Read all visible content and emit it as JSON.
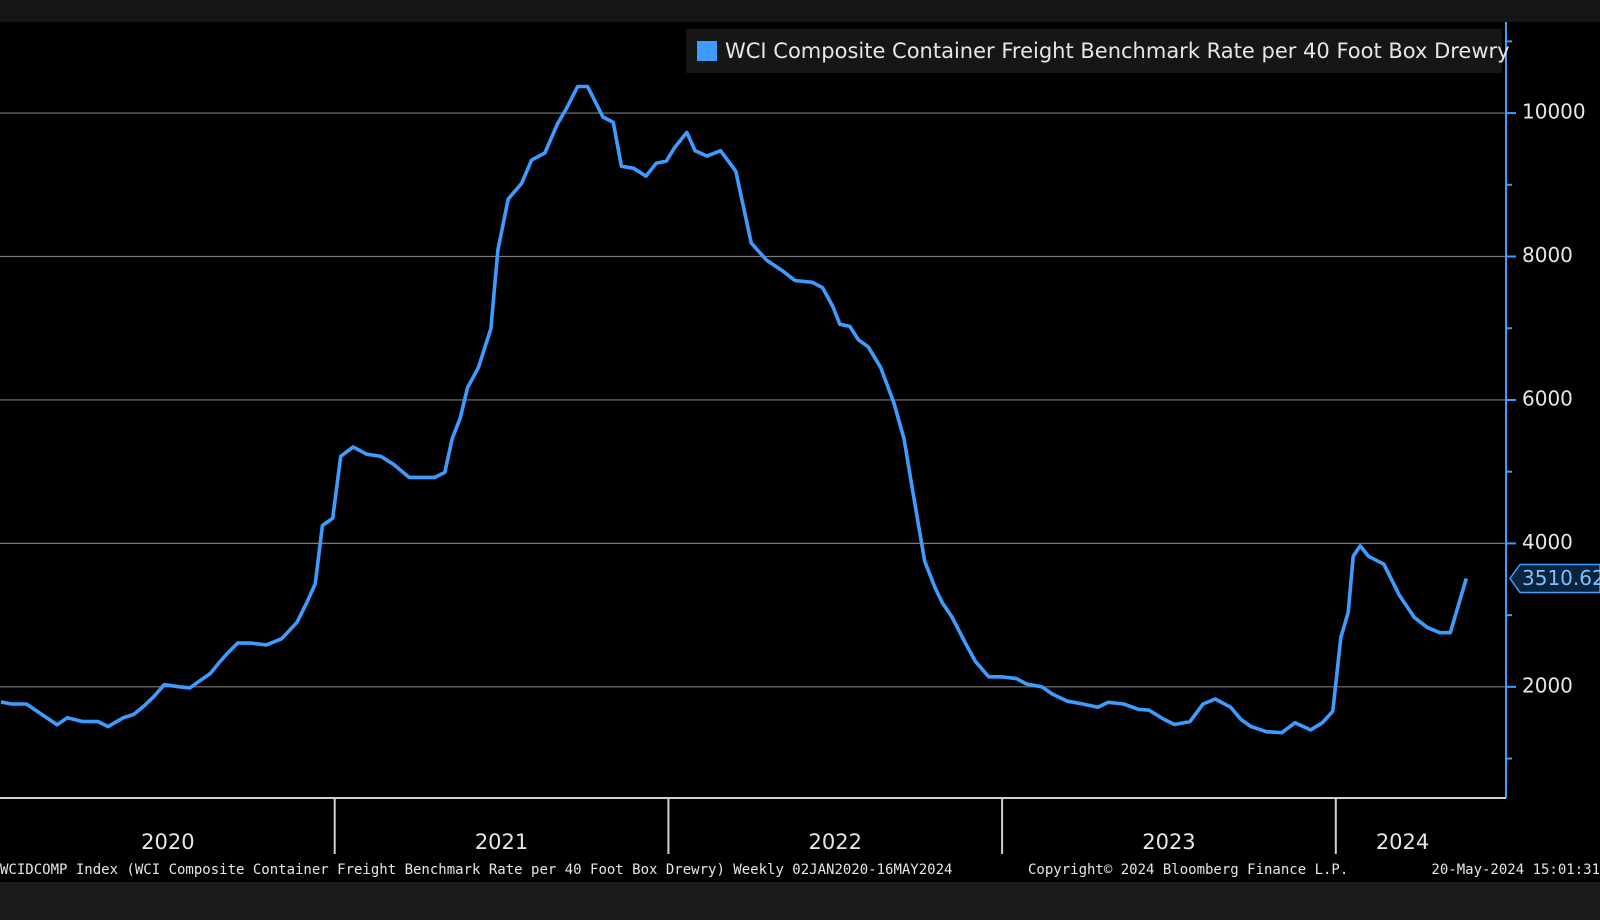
{
  "chart_data": {
    "type": "line",
    "series": [
      {
        "name": "WCI Composite Container Freight Benchmark Rate per 40 Foot Box Drewry",
        "color": "#3d9cff",
        "x": [
          2020.0,
          2020.031,
          2020.076,
          2020.122,
          2020.168,
          2020.199,
          2020.245,
          2020.291,
          2020.321,
          2020.367,
          2020.398,
          2020.428,
          2020.459,
          2020.489,
          2020.535,
          2020.566,
          2020.596,
          2020.627,
          2020.657,
          2020.679,
          2020.709,
          2020.749,
          2020.795,
          2020.841,
          2020.887,
          2020.917,
          2020.942,
          2020.963,
          2020.994,
          2021.018,
          2021.055,
          2021.095,
          2021.138,
          2021.177,
          2021.223,
          2021.254,
          2021.3,
          2021.33,
          2021.352,
          2021.376,
          2021.398,
          2021.431,
          2021.468,
          2021.489,
          2021.52,
          2021.56,
          2021.59,
          2021.63,
          2021.667,
          2021.697,
          2021.728,
          2021.758,
          2021.804,
          2021.835,
          2021.859,
          2021.896,
          2021.933,
          2021.963,
          2021.994,
          2022.018,
          2022.055,
          2022.08,
          2022.116,
          2022.156,
          2022.202,
          2022.248,
          2022.294,
          2022.339,
          2022.379,
          2022.431,
          2022.462,
          2022.492,
          2022.514,
          2022.544,
          2022.569,
          2022.599,
          2022.636,
          2022.676,
          2022.706,
          2022.737,
          2022.768,
          2022.798,
          2022.82,
          2022.85,
          2022.89,
          2022.92,
          2022.96,
          2022.997,
          2023.043,
          2023.073,
          2023.119,
          2023.15,
          2023.196,
          2023.242,
          2023.287,
          2023.318,
          2023.364,
          2023.41,
          2023.44,
          2023.486,
          2023.517,
          2023.563,
          2023.602,
          2023.639,
          2023.685,
          2023.716,
          2023.746,
          2023.792,
          2023.838,
          2023.878,
          2023.924,
          2023.96,
          2023.991,
          2024.015,
          2024.037,
          2024.052,
          2024.073,
          2024.098,
          2024.144,
          2024.19,
          2024.235,
          2024.275,
          2024.312,
          2024.343,
          2024.391
        ],
        "values": [
          1790,
          1760,
          1760,
          1615,
          1470,
          1570,
          1515,
          1515,
          1445,
          1570,
          1615,
          1730,
          1870,
          2030,
          2000,
          1985,
          2085,
          2185,
          2355,
          2470,
          2610,
          2610,
          2585,
          2670,
          2900,
          3180,
          3440,
          4250,
          4350,
          5215,
          5345,
          5245,
          5215,
          5100,
          4920,
          4920,
          4920,
          4990,
          5460,
          5745,
          6170,
          6455,
          6995,
          8090,
          8800,
          9020,
          9345,
          9445,
          9845,
          10085,
          10370,
          10370,
          9945,
          9870,
          9260,
          9230,
          9120,
          9300,
          9330,
          9515,
          9730,
          9475,
          9400,
          9475,
          9190,
          8190,
          7950,
          7810,
          7665,
          7640,
          7565,
          7310,
          7055,
          7025,
          6840,
          6740,
          6455,
          5955,
          5460,
          4600,
          3750,
          3395,
          3180,
          2970,
          2610,
          2355,
          2140,
          2140,
          2115,
          2040,
          2000,
          1900,
          1800,
          1760,
          1715,
          1785,
          1760,
          1685,
          1675,
          1545,
          1475,
          1515,
          1760,
          1830,
          1715,
          1545,
          1445,
          1375,
          1360,
          1500,
          1400,
          1500,
          1660,
          2685,
          3040,
          3820,
          3965,
          3820,
          3710,
          3280,
          2970,
          2825,
          2755,
          2755,
          3510.62
        ]
      }
    ],
    "xlim": [
      2020,
      2024.51
    ],
    "xticks": [
      {
        "value": 2020.5,
        "label": "2020"
      },
      {
        "value": 2021.5,
        "label": "2021"
      },
      {
        "value": 2022.5,
        "label": "2022"
      },
      {
        "value": 2023.5,
        "label": "2023"
      },
      {
        "value": 2024.2,
        "label": "2024"
      }
    ],
    "x_dividers": [
      2021,
      2022,
      2023,
      2024
    ],
    "ylim": [
      450,
      11270
    ],
    "yticks": [
      2000,
      4000,
      6000,
      8000,
      10000
    ],
    "y_minor_ticks": [
      1000,
      3000,
      5000,
      7000,
      9000,
      11000
    ],
    "grid": true,
    "legend": "top-right",
    "footer": {
      "source": "WCIDCOMP Index (WCI Composite Container Freight Benchmark Rate per 40 Foot Box Drewry) Weekly 02JAN2020-16MAY2024",
      "copyright": "Copyright© 2024 Bloomberg Finance L.P.",
      "timestamp": "20-May-2024 15:01:31"
    }
  }
}
